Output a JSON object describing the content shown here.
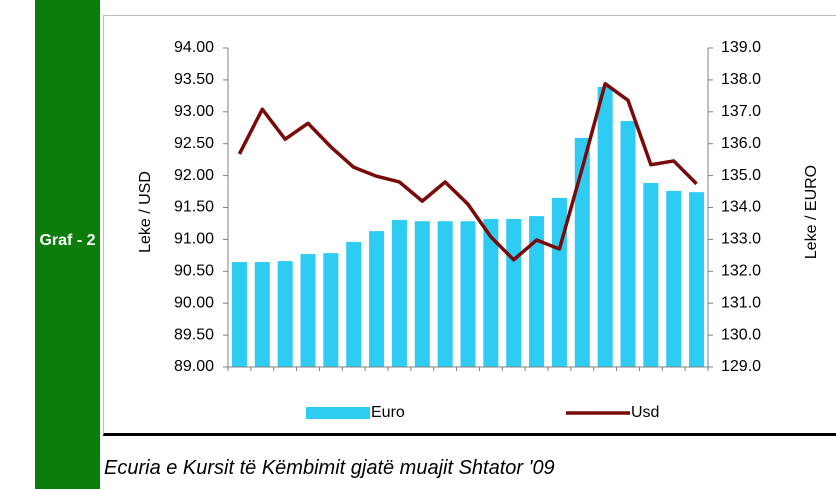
{
  "label": "Graf - 2",
  "caption": "Ecuria e Kursit të Këmbimit gjatë muajit Shtator '09",
  "chart_data": {
    "type": "bar",
    "ylabel": "Leke / USD",
    "y2label": "Leke / EURO",
    "categories": [
      null,
      null,
      null,
      null,
      null,
      null,
      null,
      null,
      null,
      null,
      null,
      null,
      null,
      null,
      null,
      null,
      null,
      null,
      null,
      null,
      null
    ],
    "ylim": [
      89,
      94
    ],
    "yticks": [
      {
        "value": 89,
        "label": "89.00"
      },
      {
        "value": 89.5,
        "label": "89.50"
      },
      {
        "value": 90,
        "label": "90.00"
      },
      {
        "value": 90.5,
        "label": "90.50"
      },
      {
        "value": 91,
        "label": "91.00"
      },
      {
        "value": 91.5,
        "label": "91.50"
      },
      {
        "value": 92,
        "label": "92.00"
      },
      {
        "value": 92.5,
        "label": "92.50"
      },
      {
        "value": 93,
        "label": "93.00"
      },
      {
        "value": 93.5,
        "label": "93.50"
      },
      {
        "value": 94,
        "label": "94.00"
      }
    ],
    "y2lim": [
      129,
      139
    ],
    "y2ticks": [
      {
        "value": 129,
        "label": "129.0"
      },
      {
        "value": 130,
        "label": "130.0"
      },
      {
        "value": 131,
        "label": "131.0"
      },
      {
        "value": 132,
        "label": "132.0"
      },
      {
        "value": 133,
        "label": "133.0"
      },
      {
        "value": 134,
        "label": "134.0"
      },
      {
        "value": 135,
        "label": "135.0"
      },
      {
        "value": 136,
        "label": "136.0"
      },
      {
        "value": 137,
        "label": "137.0"
      },
      {
        "value": 138,
        "label": "138.0"
      },
      {
        "value": 139,
        "label": "139.0"
      }
    ],
    "legend": "bottom",
    "series": [
      {
        "name": "Euro",
        "type": "bar",
        "axis": "y2",
        "color": "#2ecbf2",
        "values": [
          132.29,
          132.29,
          132.32,
          132.54,
          132.57,
          132.92,
          133.26,
          133.61,
          133.57,
          133.57,
          133.57,
          133.64,
          133.64,
          133.73,
          134.3,
          136.18,
          137.78,
          136.71,
          134.77,
          134.52,
          134.48
        ]
      },
      {
        "name": "Usd",
        "type": "line",
        "color": "#7a0a0a",
        "values": [
          92.34,
          93.04,
          92.57,
          92.82,
          92.45,
          92.13,
          91.99,
          91.9,
          91.6,
          91.9,
          91.55,
          91.04,
          90.68,
          90.99,
          90.85,
          92.12,
          93.44,
          93.18,
          92.17,
          92.23,
          91.87
        ]
      }
    ]
  }
}
